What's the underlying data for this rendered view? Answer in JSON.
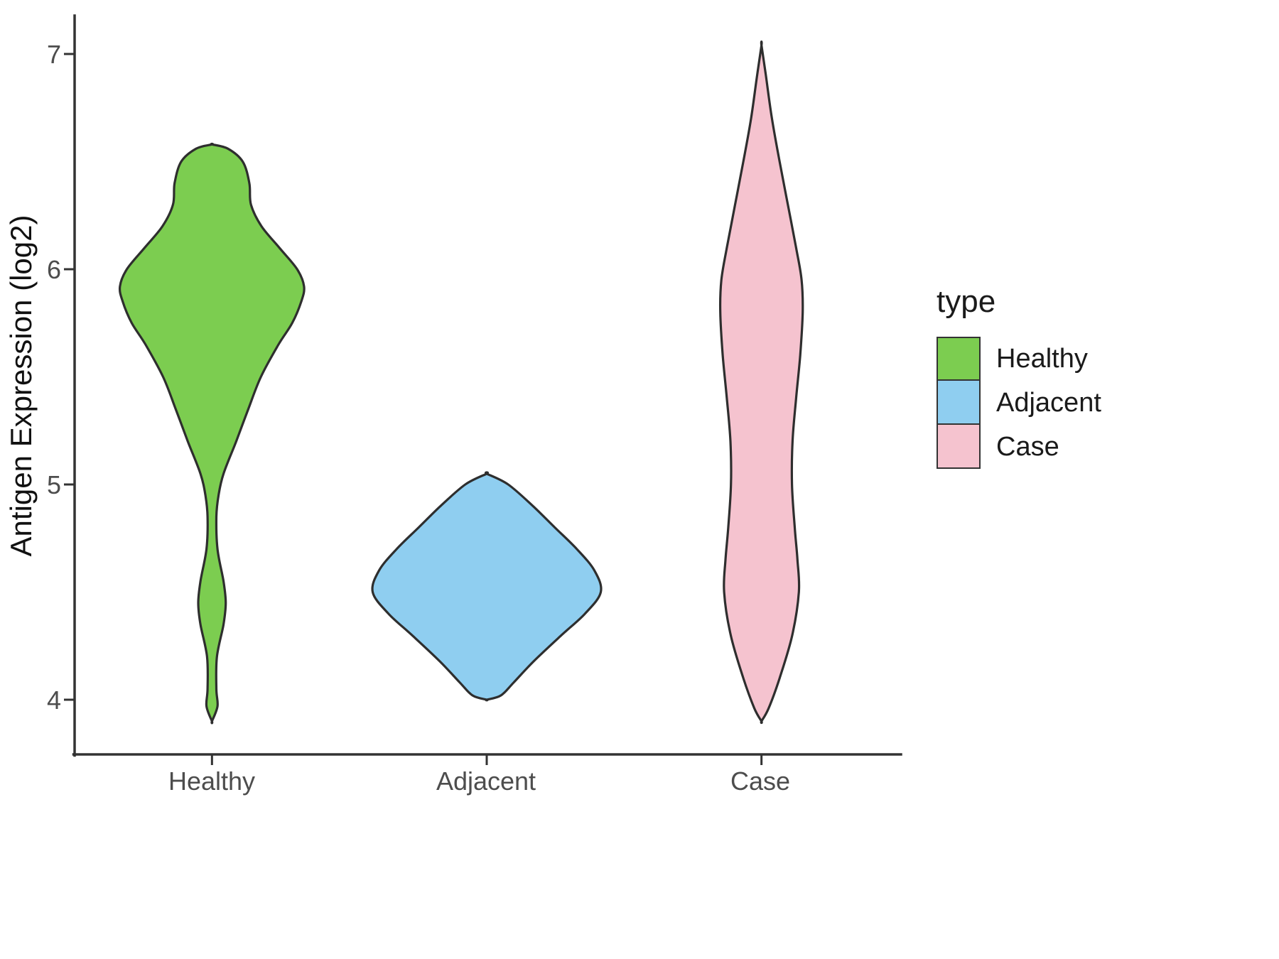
{
  "chart_data": {
    "type": "violin",
    "title": "",
    "xlabel": "",
    "ylabel": "Antigen Expression (log2)",
    "categories": [
      "Healthy",
      "Adjacent",
      "Case"
    ],
    "y_ticks": [
      4,
      5,
      6,
      7
    ],
    "ylim": [
      3.75,
      7.2
    ],
    "grid": false,
    "legend": {
      "title": "type",
      "position": "right",
      "entries": [
        {
          "label": "Healthy",
          "color": "#7CCD50"
        },
        {
          "label": "Adjacent",
          "color": "#8FCEF0"
        },
        {
          "label": "Case",
          "color": "#F5C3CF"
        }
      ]
    },
    "series": [
      {
        "name": "Healthy",
        "color": "#7CCD50",
        "range": [
          3.9,
          6.58
        ],
        "profile": [
          [
            3.9,
            0.0
          ],
          [
            3.97,
            0.02
          ],
          [
            4.05,
            0.016
          ],
          [
            4.2,
            0.018
          ],
          [
            4.35,
            0.042
          ],
          [
            4.45,
            0.05
          ],
          [
            4.55,
            0.042
          ],
          [
            4.7,
            0.02
          ],
          [
            4.85,
            0.016
          ],
          [
            4.95,
            0.024
          ],
          [
            5.05,
            0.042
          ],
          [
            5.2,
            0.088
          ],
          [
            5.35,
            0.132
          ],
          [
            5.5,
            0.178
          ],
          [
            5.65,
            0.242
          ],
          [
            5.75,
            0.292
          ],
          [
            5.85,
            0.325
          ],
          [
            5.92,
            0.335
          ],
          [
            6.0,
            0.31
          ],
          [
            6.1,
            0.245
          ],
          [
            6.2,
            0.18
          ],
          [
            6.3,
            0.142
          ],
          [
            6.4,
            0.136
          ],
          [
            6.5,
            0.112
          ],
          [
            6.56,
            0.058
          ],
          [
            6.58,
            0.0
          ]
        ]
      },
      {
        "name": "Adjacent",
        "color": "#8FCEF0",
        "range": [
          4.0,
          5.05
        ],
        "profile": [
          [
            4.0,
            0.0
          ],
          [
            4.02,
            0.052
          ],
          [
            4.08,
            0.098
          ],
          [
            4.18,
            0.172
          ],
          [
            4.3,
            0.272
          ],
          [
            4.4,
            0.358
          ],
          [
            4.5,
            0.415
          ],
          [
            4.6,
            0.392
          ],
          [
            4.7,
            0.328
          ],
          [
            4.8,
            0.248
          ],
          [
            4.9,
            0.168
          ],
          [
            5.0,
            0.078
          ],
          [
            5.05,
            0.0
          ]
        ]
      },
      {
        "name": "Case",
        "color": "#F5C3CF",
        "range": [
          3.9,
          7.04
        ],
        "profile": [
          [
            3.9,
            0.0
          ],
          [
            3.96,
            0.026
          ],
          [
            4.1,
            0.066
          ],
          [
            4.3,
            0.112
          ],
          [
            4.5,
            0.136
          ],
          [
            4.65,
            0.131
          ],
          [
            4.8,
            0.121
          ],
          [
            5.0,
            0.111
          ],
          [
            5.2,
            0.113
          ],
          [
            5.4,
            0.126
          ],
          [
            5.6,
            0.141
          ],
          [
            5.8,
            0.15
          ],
          [
            5.95,
            0.146
          ],
          [
            6.1,
            0.126
          ],
          [
            6.3,
            0.096
          ],
          [
            6.5,
            0.066
          ],
          [
            6.7,
            0.038
          ],
          [
            6.9,
            0.016
          ],
          [
            7.04,
            0.0
          ]
        ]
      }
    ]
  }
}
